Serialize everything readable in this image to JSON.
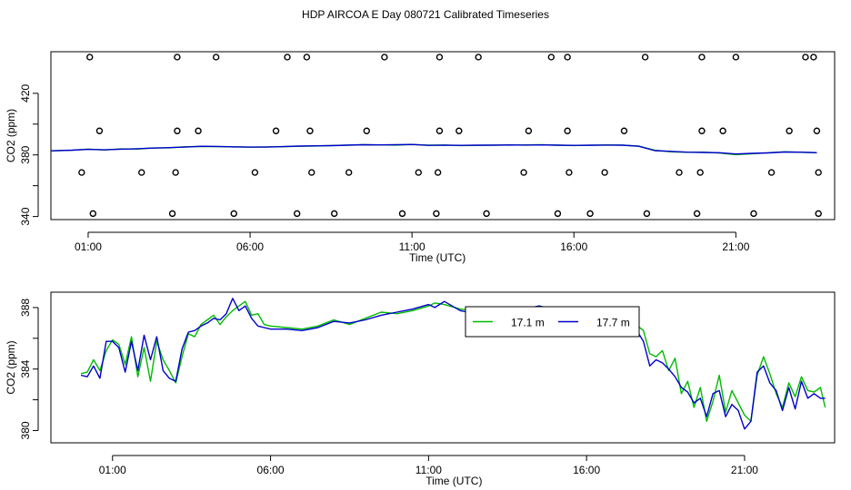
{
  "page_title": "HDP AIRCOA E  Day 080721  Calibrated Timeseries",
  "chart_data": [
    {
      "type": "scatter+line",
      "xlabel": "Time (UTC)",
      "ylabel": "CO2 (ppm)",
      "xlim": [
        -0.15,
        24.05
      ],
      "ylim": [
        338,
        447
      ],
      "x_ticks": [
        1,
        6,
        11,
        16,
        21
      ],
      "x_tick_labels": [
        "01:00",
        "06:00",
        "11:00",
        "16:00",
        "21:00"
      ],
      "y_ticks": [
        340,
        360,
        380,
        400,
        420
      ],
      "y_tick_labels": [
        "340",
        "380",
        "420"
      ],
      "grid": false,
      "legend": "none",
      "series": [
        {
          "color": "#00bb00",
          "kind": "line",
          "x": [
            -1,
            0.5,
            1,
            1.5,
            2,
            2.5,
            3,
            3.5,
            4,
            4.5,
            5,
            5.5,
            6,
            6.5,
            7,
            7.5,
            8,
            8.5,
            9,
            9.5,
            10,
            10.5,
            11,
            11.5,
            12,
            12.5,
            13,
            13.5,
            14,
            14.5,
            15,
            15.5,
            16,
            16.5,
            17,
            17.5,
            18,
            18.5,
            19,
            19.5,
            20,
            20.5,
            21,
            21.5,
            22,
            22.5,
            23,
            23.5
          ],
          "y": [
            382,
            383,
            383.8,
            383.2,
            383.9,
            383.8,
            384.5,
            384.6,
            385.3,
            385.5,
            385.4,
            385.3,
            385,
            385.2,
            385.3,
            385.6,
            385.8,
            386.1,
            386.4,
            386.6,
            386.5,
            386.4,
            386.7,
            386.3,
            386.4,
            386.1,
            386.2,
            386.4,
            386.4,
            386.5,
            386.6,
            386.3,
            386.1,
            386.2,
            386.5,
            386.4,
            385.7,
            383,
            382,
            381.7,
            381.8,
            381.2,
            380.2,
            380.8,
            381.4,
            382,
            381.7,
            381.5
          ]
        },
        {
          "color": "#0000cc",
          "kind": "line",
          "x": [
            -1,
            0.5,
            1,
            1.5,
            2,
            2.5,
            3,
            3.5,
            4,
            4.5,
            5,
            5.5,
            6,
            6.5,
            7,
            7.5,
            8,
            8.5,
            9,
            9.5,
            10,
            10.5,
            11,
            11.5,
            12,
            12.5,
            13,
            13.5,
            14,
            14.5,
            15,
            15.5,
            16,
            16.5,
            17,
            17.5,
            18,
            18.5,
            19,
            19.5,
            20,
            20.5,
            21,
            21.5,
            22,
            22.5,
            23,
            23.5
          ],
          "y": [
            382.2,
            383.1,
            383.6,
            383.3,
            383.7,
            384,
            384.4,
            384.7,
            385.1,
            385.6,
            385.5,
            385.2,
            385.1,
            385.1,
            385.4,
            385.7,
            385.9,
            386,
            386.3,
            386.6,
            386.5,
            386.6,
            386.8,
            386.2,
            386.4,
            386.2,
            386.3,
            386.3,
            386.5,
            386.4,
            386.5,
            386.3,
            386.2,
            386.3,
            386.4,
            386.3,
            385.6,
            382.8,
            382.3,
            381.8,
            381.6,
            381.4,
            380.6,
            381,
            381.3,
            381.9,
            381.8,
            381.4
          ]
        },
        {
          "color": "#000000",
          "kind": "points",
          "x": [
            1.15,
            3.6,
            5.5,
            7.45,
            8.6,
            10.7,
            11.75,
            13.3,
            15.5,
            16.5,
            18.25,
            19.8,
            21.55,
            23.55
          ],
          "y": [
            341.9,
            341.9,
            341.9,
            341.9,
            341.9,
            341.9,
            341.9,
            341.9,
            341.9,
            341.9,
            341.9,
            341.9,
            341.9,
            341.9
          ]
        },
        {
          "color": "#000000",
          "kind": "points",
          "x": [
            0.8,
            2.65,
            3.7,
            6.15,
            7.9,
            9.05,
            11.2,
            11.8,
            14.45,
            15.85,
            16.95,
            19.25,
            19.9,
            22.1,
            23.55
          ],
          "y": [
            368.6,
            368.6,
            368.6,
            368.6,
            368.6,
            368.6,
            368.6,
            368.6,
            368.6,
            368.6,
            368.6,
            368.6,
            368.6,
            368.6,
            368.6
          ]
        },
        {
          "color": "#000000",
          "kind": "points",
          "x": [
            1.35,
            3.75,
            4.4,
            6.8,
            7.85,
            9.6,
            11.85,
            12.45,
            14.6,
            15.8,
            17.55,
            19.95,
            20.6,
            22.65,
            23.5
          ],
          "y": [
            395.6,
            395.6,
            395.6,
            395.6,
            395.6,
            395.6,
            395.6,
            395.6,
            395.6,
            395.6,
            395.6,
            395.6,
            395.6,
            395.6,
            395.6
          ]
        },
        {
          "color": "#000000",
          "kind": "points",
          "x": [
            1.05,
            3.75,
            4.95,
            7.15,
            7.75,
            10.15,
            11.85,
            13.05,
            15.3,
            15.8,
            18.2,
            19.95,
            21.0,
            23.15,
            23.4
          ],
          "y": [
            443.5,
            443.5,
            443.5,
            443.5,
            443.5,
            443.5,
            443.5,
            443.5,
            443.5,
            443.5,
            443.5,
            443.5,
            443.5,
            443.5,
            443.5
          ]
        }
      ]
    },
    {
      "type": "line",
      "xlabel": "Time (UTC)",
      "ylabel": "CO2 (ppm)",
      "xlim": [
        -0.95,
        23.85
      ],
      "ylim": [
        379.2,
        389
      ],
      "x_ticks": [
        1,
        6,
        11,
        16,
        21
      ],
      "x_tick_labels": [
        "01:00",
        "06:00",
        "11:00",
        "16:00",
        "21:00"
      ],
      "y_ticks": [
        380,
        382,
        384,
        386,
        388
      ],
      "y_tick_labels": [
        "380",
        "384",
        "388"
      ],
      "grid": false,
      "legend": "top-center",
      "series": [
        {
          "name": "17.1 m",
          "color": "#00bb00",
          "x": [
            0,
            0.2,
            0.4,
            0.6,
            0.8,
            1,
            1.2,
            1.4,
            1.6,
            1.8,
            2,
            2.2,
            2.4,
            2.6,
            2.8,
            3,
            3.2,
            3.4,
            3.6,
            3.8,
            4,
            4.2,
            4.4,
            4.6,
            4.8,
            5,
            5.2,
            5.4,
            5.6,
            5.8,
            6,
            6.5,
            7,
            7.5,
            8,
            8.5,
            9,
            9.5,
            10,
            10.5,
            11,
            11.2,
            11.5,
            12,
            12.5,
            13,
            13.5,
            14,
            14.5,
            15,
            15.5,
            16,
            16.5,
            17,
            17.5,
            17.8,
            18,
            18.2,
            18.4,
            18.6,
            18.8,
            19,
            19.2,
            19.4,
            19.6,
            19.8,
            20,
            20.2,
            20.4,
            20.6,
            20.8,
            21,
            21.2,
            21.4,
            21.6,
            21.8,
            22,
            22.2,
            22.4,
            22.6,
            22.8,
            23,
            23.2,
            23.4,
            23.55
          ],
          "y": [
            383.7,
            383.8,
            384.6,
            383.9,
            385.2,
            385.9,
            385.6,
            384.3,
            386.1,
            383.5,
            385.4,
            383.2,
            385.8,
            384.6,
            383.9,
            383.1,
            384.8,
            386.3,
            386.1,
            386.9,
            387.2,
            387.5,
            386.9,
            387.4,
            387.8,
            388.1,
            388.4,
            387.5,
            387.6,
            386.9,
            386.8,
            386.7,
            386.6,
            386.8,
            387.2,
            386.9,
            387.3,
            387.7,
            387.6,
            387.8,
            388.1,
            388.3,
            388.2,
            387.9,
            387.8,
            387.6,
            387.4,
            387.8,
            388.1,
            387.9,
            387.7,
            387.6,
            387.3,
            387.2,
            387.0,
            386.5,
            385.0,
            384.8,
            385.2,
            383.9,
            384.7,
            382.4,
            383.2,
            381.5,
            382.8,
            380.6,
            381.9,
            383.6,
            381.2,
            382.6,
            381.8,
            381.0,
            380.6,
            383.6,
            384.8,
            383.7,
            382.4,
            381.5,
            383.1,
            382.2,
            383.5,
            382.6,
            382.5,
            382.8,
            381.5
          ]
        },
        {
          "name": "17.7 m",
          "color": "#0000cc",
          "x": [
            0,
            0.2,
            0.4,
            0.6,
            0.8,
            1,
            1.2,
            1.4,
            1.6,
            1.8,
            2,
            2.2,
            2.4,
            2.6,
            2.8,
            3,
            3.2,
            3.4,
            3.6,
            3.8,
            4,
            4.2,
            4.4,
            4.6,
            4.8,
            5,
            5.2,
            5.4,
            5.6,
            5.8,
            6,
            6.5,
            7,
            7.5,
            8,
            8.5,
            9,
            9.5,
            10,
            10.5,
            11,
            11.2,
            11.5,
            12,
            12.5,
            13,
            13.5,
            14,
            14.5,
            15,
            15.5,
            16,
            16.5,
            17,
            17.5,
            17.8,
            18,
            18.2,
            18.4,
            18.6,
            18.8,
            19,
            19.2,
            19.4,
            19.6,
            19.8,
            20,
            20.2,
            20.4,
            20.6,
            20.8,
            21,
            21.2,
            21.4,
            21.6,
            21.8,
            22,
            22.2,
            22.4,
            22.6,
            22.8,
            23,
            23.2,
            23.4,
            23.55
          ],
          "y": [
            383.6,
            383.5,
            384.2,
            383.4,
            385.8,
            385.8,
            385.4,
            383.8,
            385.8,
            383.9,
            386.2,
            384.6,
            386.1,
            383.9,
            383.4,
            383.2,
            385.3,
            386.4,
            386.5,
            386.8,
            387.0,
            387.3,
            387.2,
            387.6,
            388.6,
            387.8,
            388.1,
            387.3,
            386.8,
            386.7,
            386.6,
            386.6,
            386.5,
            386.7,
            387.1,
            387.0,
            387.2,
            387.5,
            387.7,
            387.9,
            388.2,
            388.0,
            388.4,
            387.8,
            387.6,
            387.4,
            387.3,
            387.9,
            388.1,
            387.8,
            387.5,
            387.4,
            387.2,
            387.1,
            386.8,
            385.8,
            384.2,
            384.6,
            384.4,
            384.0,
            383.5,
            382.8,
            382.5,
            381.8,
            382.1,
            380.9,
            382.4,
            382.6,
            380.9,
            381.7,
            381.3,
            380.1,
            380.6,
            383.8,
            384.2,
            383.1,
            382.6,
            381.3,
            382.8,
            381.4,
            383.2,
            382.1,
            382.4,
            382.1,
            382.1
          ]
        }
      ]
    }
  ]
}
